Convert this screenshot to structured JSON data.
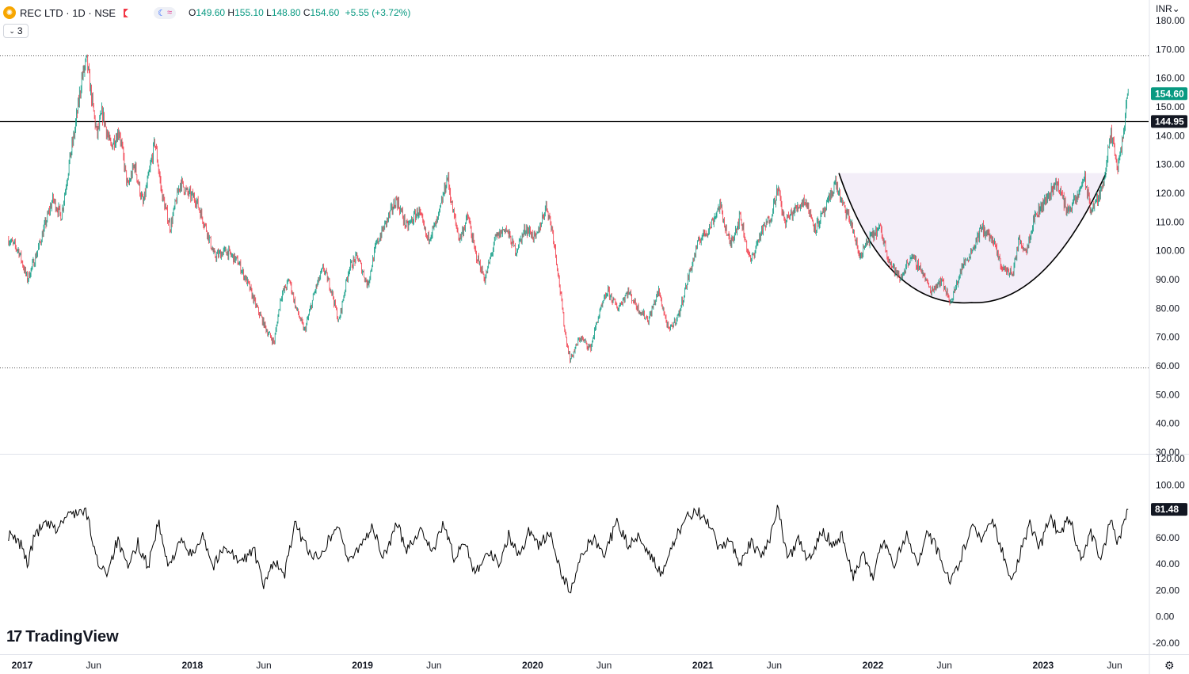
{
  "header": {
    "symbol": "REC LTD · 1D · NSE",
    "open_label": "O",
    "open": "149.60",
    "high_label": "H",
    "high": "155.10",
    "low_label": "L",
    "low": "148.80",
    "close_label": "C",
    "close": "154.60",
    "change": "+5.55 (+3.72%)"
  },
  "indicators_count": "3",
  "currency": "INR",
  "logo": "TradingView",
  "colors": {
    "up": "#089981",
    "down": "#f23645",
    "line": "#000000",
    "cup_fill": "#f3eef8"
  },
  "chart_data": [
    {
      "type": "candlestick",
      "price_axis": {
        "min": 30,
        "max": 180,
        "ticks": [
          30,
          40,
          50,
          60,
          70,
          80,
          90,
          100,
          110,
          120,
          130,
          140,
          150,
          160,
          170,
          180
        ]
      },
      "time_labels": [
        {
          "t": 2017.0,
          "label": "2017",
          "year": true
        },
        {
          "t": 2017.42,
          "label": "Jun"
        },
        {
          "t": 2018.0,
          "label": "2018",
          "year": true
        },
        {
          "t": 2018.42,
          "label": "Jun"
        },
        {
          "t": 2019.0,
          "label": "2019",
          "year": true
        },
        {
          "t": 2019.42,
          "label": "Jun"
        },
        {
          "t": 2020.0,
          "label": "2020",
          "year": true
        },
        {
          "t": 2020.42,
          "label": "Jun"
        },
        {
          "t": 2021.0,
          "label": "2021",
          "year": true
        },
        {
          "t": 2021.42,
          "label": "Jun"
        },
        {
          "t": 2022.0,
          "label": "2022",
          "year": true
        },
        {
          "t": 2022.42,
          "label": "Jun"
        },
        {
          "t": 2023.0,
          "label": "2023",
          "year": true
        },
        {
          "t": 2023.42,
          "label": "Jun"
        }
      ],
      "close_path": [
        {
          "t": 2016.92,
          "v": 104
        },
        {
          "t": 2016.98,
          "v": 100
        },
        {
          "t": 2017.03,
          "v": 90
        },
        {
          "t": 2017.08,
          "v": 98
        },
        {
          "t": 2017.13,
          "v": 108
        },
        {
          "t": 2017.18,
          "v": 118
        },
        {
          "t": 2017.23,
          "v": 112
        },
        {
          "t": 2017.28,
          "v": 132
        },
        {
          "t": 2017.31,
          "v": 142
        },
        {
          "t": 2017.35,
          "v": 160
        },
        {
          "t": 2017.38,
          "v": 166
        },
        {
          "t": 2017.41,
          "v": 152
        },
        {
          "t": 2017.44,
          "v": 140
        },
        {
          "t": 2017.47,
          "v": 148
        },
        {
          "t": 2017.52,
          "v": 136
        },
        {
          "t": 2017.57,
          "v": 142
        },
        {
          "t": 2017.62,
          "v": 122
        },
        {
          "t": 2017.66,
          "v": 130
        },
        {
          "t": 2017.71,
          "v": 116
        },
        {
          "t": 2017.75,
          "v": 128
        },
        {
          "t": 2017.78,
          "v": 138
        },
        {
          "t": 2017.82,
          "v": 120
        },
        {
          "t": 2017.87,
          "v": 108
        },
        {
          "t": 2017.93,
          "v": 124
        },
        {
          "t": 2017.97,
          "v": 120
        },
        {
          "t": 2018.02,
          "v": 118
        },
        {
          "t": 2018.08,
          "v": 108
        },
        {
          "t": 2018.13,
          "v": 98
        },
        {
          "t": 2018.2,
          "v": 100
        },
        {
          "t": 2018.27,
          "v": 96
        },
        {
          "t": 2018.33,
          "v": 88
        },
        {
          "t": 2018.38,
          "v": 80
        },
        {
          "t": 2018.44,
          "v": 72
        },
        {
          "t": 2018.48,
          "v": 68
        },
        {
          "t": 2018.52,
          "v": 84
        },
        {
          "t": 2018.57,
          "v": 90
        },
        {
          "t": 2018.61,
          "v": 80
        },
        {
          "t": 2018.66,
          "v": 72
        },
        {
          "t": 2018.72,
          "v": 86
        },
        {
          "t": 2018.77,
          "v": 94
        },
        {
          "t": 2018.82,
          "v": 86
        },
        {
          "t": 2018.86,
          "v": 75
        },
        {
          "t": 2018.92,
          "v": 94
        },
        {
          "t": 2018.97,
          "v": 98
        },
        {
          "t": 2019.03,
          "v": 88
        },
        {
          "t": 2019.08,
          "v": 102
        },
        {
          "t": 2019.14,
          "v": 110
        },
        {
          "t": 2019.2,
          "v": 118
        },
        {
          "t": 2019.26,
          "v": 108
        },
        {
          "t": 2019.33,
          "v": 114
        },
        {
          "t": 2019.38,
          "v": 104
        },
        {
          "t": 2019.44,
          "v": 110
        },
        {
          "t": 2019.5,
          "v": 126
        },
        {
          "t": 2019.53,
          "v": 114
        },
        {
          "t": 2019.57,
          "v": 104
        },
        {
          "t": 2019.62,
          "v": 112
        },
        {
          "t": 2019.66,
          "v": 100
        },
        {
          "t": 2019.72,
          "v": 90
        },
        {
          "t": 2019.78,
          "v": 104
        },
        {
          "t": 2019.84,
          "v": 108
        },
        {
          "t": 2019.9,
          "v": 100
        },
        {
          "t": 2019.96,
          "v": 108
        },
        {
          "t": 2020.02,
          "v": 104
        },
        {
          "t": 2020.08,
          "v": 116
        },
        {
          "t": 2020.12,
          "v": 106
        },
        {
          "t": 2020.15,
          "v": 92
        },
        {
          "t": 2020.19,
          "v": 72
        },
        {
          "t": 2020.22,
          "v": 62
        },
        {
          "t": 2020.28,
          "v": 70
        },
        {
          "t": 2020.34,
          "v": 66
        },
        {
          "t": 2020.38,
          "v": 76
        },
        {
          "t": 2020.44,
          "v": 86
        },
        {
          "t": 2020.5,
          "v": 80
        },
        {
          "t": 2020.56,
          "v": 86
        },
        {
          "t": 2020.62,
          "v": 80
        },
        {
          "t": 2020.68,
          "v": 76
        },
        {
          "t": 2020.74,
          "v": 86
        },
        {
          "t": 2020.8,
          "v": 72
        },
        {
          "t": 2020.86,
          "v": 78
        },
        {
          "t": 2020.92,
          "v": 92
        },
        {
          "t": 2020.98,
          "v": 104
        },
        {
          "t": 2021.04,
          "v": 108
        },
        {
          "t": 2021.1,
          "v": 116
        },
        {
          "t": 2021.16,
          "v": 102
        },
        {
          "t": 2021.22,
          "v": 112
        },
        {
          "t": 2021.28,
          "v": 96
        },
        {
          "t": 2021.34,
          "v": 106
        },
        {
          "t": 2021.4,
          "v": 112
        },
        {
          "t": 2021.44,
          "v": 122
        },
        {
          "t": 2021.48,
          "v": 110
        },
        {
          "t": 2021.54,
          "v": 114
        },
        {
          "t": 2021.6,
          "v": 118
        },
        {
          "t": 2021.66,
          "v": 108
        },
        {
          "t": 2021.72,
          "v": 114
        },
        {
          "t": 2021.78,
          "v": 124
        },
        {
          "t": 2021.82,
          "v": 116
        },
        {
          "t": 2021.87,
          "v": 110
        },
        {
          "t": 2021.92,
          "v": 98
        },
        {
          "t": 2021.98,
          "v": 104
        },
        {
          "t": 2022.04,
          "v": 108
        },
        {
          "t": 2022.1,
          "v": 96
        },
        {
          "t": 2022.16,
          "v": 90
        },
        {
          "t": 2022.22,
          "v": 98
        },
        {
          "t": 2022.28,
          "v": 94
        },
        {
          "t": 2022.34,
          "v": 86
        },
        {
          "t": 2022.4,
          "v": 90
        },
        {
          "t": 2022.46,
          "v": 82
        },
        {
          "t": 2022.52,
          "v": 94
        },
        {
          "t": 2022.58,
          "v": 100
        },
        {
          "t": 2022.64,
          "v": 108
        },
        {
          "t": 2022.7,
          "v": 104
        },
        {
          "t": 2022.76,
          "v": 94
        },
        {
          "t": 2022.82,
          "v": 92
        },
        {
          "t": 2022.86,
          "v": 104
        },
        {
          "t": 2022.9,
          "v": 100
        },
        {
          "t": 2022.95,
          "v": 112
        },
        {
          "t": 2023.02,
          "v": 118
        },
        {
          "t": 2023.08,
          "v": 124
        },
        {
          "t": 2023.14,
          "v": 114
        },
        {
          "t": 2023.2,
          "v": 118
        },
        {
          "t": 2023.24,
          "v": 126
        },
        {
          "t": 2023.28,
          "v": 114
        },
        {
          "t": 2023.34,
          "v": 120
        },
        {
          "t": 2023.4,
          "v": 140
        },
        {
          "t": 2023.44,
          "v": 128
        },
        {
          "t": 2023.47,
          "v": 140
        },
        {
          "t": 2023.5,
          "v": 154.6
        }
      ],
      "horizontal_lines": [
        {
          "value": 168.0,
          "style": "dotted"
        },
        {
          "value": 144.95,
          "style": "solid"
        },
        {
          "value": 59.5,
          "style": "dotted"
        }
      ],
      "cup_pattern": {
        "t_start": 2021.8,
        "t_end": 2023.37,
        "rim": 127,
        "bottom_t": 2022.58,
        "bottom": 82
      },
      "last_price": {
        "value": 154.6,
        "label": "154.60"
      },
      "line_label": {
        "value": 144.95,
        "label": "144.95"
      }
    },
    {
      "type": "line",
      "name": "",
      "y_axis": {
        "min": -20,
        "max": 120,
        "ticks": [
          -20,
          0,
          20,
          40,
          60,
          80,
          100,
          120
        ]
      },
      "last_value": {
        "value": 81.48,
        "label": "81.48"
      },
      "anchors": [
        {
          "t": 2016.92,
          "v": 62
        },
        {
          "t": 2017.0,
          "v": 54
        },
        {
          "t": 2017.03,
          "v": 40
        },
        {
          "t": 2017.08,
          "v": 64
        },
        {
          "t": 2017.14,
          "v": 70
        },
        {
          "t": 2017.2,
          "v": 66
        },
        {
          "t": 2017.26,
          "v": 76
        },
        {
          "t": 2017.32,
          "v": 80
        },
        {
          "t": 2017.38,
          "v": 78
        },
        {
          "t": 2017.44,
          "v": 42
        },
        {
          "t": 2017.5,
          "v": 34
        },
        {
          "t": 2017.56,
          "v": 58
        },
        {
          "t": 2017.62,
          "v": 36
        },
        {
          "t": 2017.68,
          "v": 56
        },
        {
          "t": 2017.74,
          "v": 38
        },
        {
          "t": 2017.8,
          "v": 72
        },
        {
          "t": 2017.86,
          "v": 36
        },
        {
          "t": 2017.92,
          "v": 58
        },
        {
          "t": 2018.0,
          "v": 46
        },
        {
          "t": 2018.06,
          "v": 64
        },
        {
          "t": 2018.12,
          "v": 38
        },
        {
          "t": 2018.2,
          "v": 54
        },
        {
          "t": 2018.28,
          "v": 40
        },
        {
          "t": 2018.36,
          "v": 52
        },
        {
          "t": 2018.42,
          "v": 22
        },
        {
          "t": 2018.48,
          "v": 44
        },
        {
          "t": 2018.54,
          "v": 30
        },
        {
          "t": 2018.6,
          "v": 70
        },
        {
          "t": 2018.66,
          "v": 56
        },
        {
          "t": 2018.72,
          "v": 44
        },
        {
          "t": 2018.78,
          "v": 54
        },
        {
          "t": 2018.86,
          "v": 70
        },
        {
          "t": 2018.92,
          "v": 40
        },
        {
          "t": 2018.98,
          "v": 54
        },
        {
          "t": 2019.06,
          "v": 68
        },
        {
          "t": 2019.12,
          "v": 44
        },
        {
          "t": 2019.2,
          "v": 70
        },
        {
          "t": 2019.26,
          "v": 52
        },
        {
          "t": 2019.34,
          "v": 66
        },
        {
          "t": 2019.42,
          "v": 50
        },
        {
          "t": 2019.48,
          "v": 72
        },
        {
          "t": 2019.54,
          "v": 42
        },
        {
          "t": 2019.6,
          "v": 58
        },
        {
          "t": 2019.66,
          "v": 34
        },
        {
          "t": 2019.74,
          "v": 50
        },
        {
          "t": 2019.8,
          "v": 40
        },
        {
          "t": 2019.86,
          "v": 62
        },
        {
          "t": 2019.92,
          "v": 46
        },
        {
          "t": 2019.98,
          "v": 66
        },
        {
          "t": 2020.04,
          "v": 54
        },
        {
          "t": 2020.1,
          "v": 64
        },
        {
          "t": 2020.16,
          "v": 36
        },
        {
          "t": 2020.22,
          "v": 18
        },
        {
          "t": 2020.3,
          "v": 50
        },
        {
          "t": 2020.36,
          "v": 60
        },
        {
          "t": 2020.42,
          "v": 48
        },
        {
          "t": 2020.5,
          "v": 72
        },
        {
          "t": 2020.56,
          "v": 54
        },
        {
          "t": 2020.62,
          "v": 62
        },
        {
          "t": 2020.7,
          "v": 46
        },
        {
          "t": 2020.76,
          "v": 30
        },
        {
          "t": 2020.84,
          "v": 60
        },
        {
          "t": 2020.9,
          "v": 74
        },
        {
          "t": 2020.96,
          "v": 82
        },
        {
          "t": 2021.04,
          "v": 68
        },
        {
          "t": 2021.1,
          "v": 50
        },
        {
          "t": 2021.16,
          "v": 60
        },
        {
          "t": 2021.22,
          "v": 40
        },
        {
          "t": 2021.28,
          "v": 56
        },
        {
          "t": 2021.34,
          "v": 46
        },
        {
          "t": 2021.4,
          "v": 62
        },
        {
          "t": 2021.44,
          "v": 84
        },
        {
          "t": 2021.5,
          "v": 42
        },
        {
          "t": 2021.56,
          "v": 58
        },
        {
          "t": 2021.62,
          "v": 42
        },
        {
          "t": 2021.7,
          "v": 66
        },
        {
          "t": 2021.76,
          "v": 56
        },
        {
          "t": 2021.82,
          "v": 62
        },
        {
          "t": 2021.88,
          "v": 30
        },
        {
          "t": 2021.94,
          "v": 48
        },
        {
          "t": 2022.0,
          "v": 28
        },
        {
          "t": 2022.06,
          "v": 60
        },
        {
          "t": 2022.12,
          "v": 38
        },
        {
          "t": 2022.2,
          "v": 64
        },
        {
          "t": 2022.26,
          "v": 40
        },
        {
          "t": 2022.32,
          "v": 66
        },
        {
          "t": 2022.4,
          "v": 44
        },
        {
          "t": 2022.46,
          "v": 26
        },
        {
          "t": 2022.52,
          "v": 46
        },
        {
          "t": 2022.58,
          "v": 70
        },
        {
          "t": 2022.64,
          "v": 58
        },
        {
          "t": 2022.7,
          "v": 76
        },
        {
          "t": 2022.76,
          "v": 50
        },
        {
          "t": 2022.82,
          "v": 26
        },
        {
          "t": 2022.88,
          "v": 56
        },
        {
          "t": 2022.92,
          "v": 70
        },
        {
          "t": 2022.98,
          "v": 52
        },
        {
          "t": 2023.04,
          "v": 76
        },
        {
          "t": 2023.1,
          "v": 62
        },
        {
          "t": 2023.16,
          "v": 76
        },
        {
          "t": 2023.22,
          "v": 44
        },
        {
          "t": 2023.28,
          "v": 64
        },
        {
          "t": 2023.34,
          "v": 44
        },
        {
          "t": 2023.4,
          "v": 74
        },
        {
          "t": 2023.44,
          "v": 56
        },
        {
          "t": 2023.5,
          "v": 81.48
        }
      ]
    }
  ]
}
